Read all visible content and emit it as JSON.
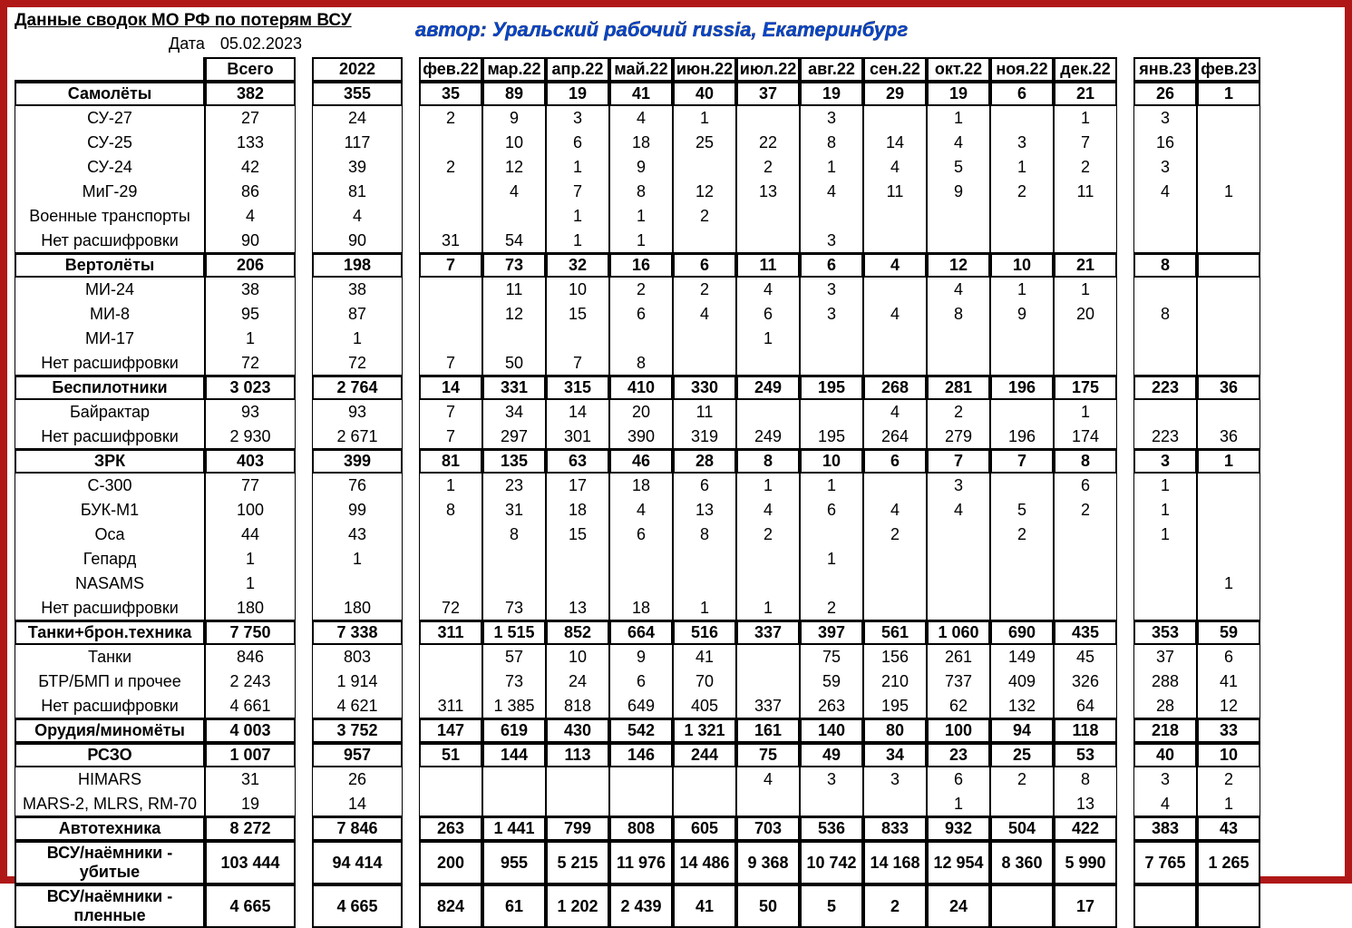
{
  "meta": {
    "title": "Данные сводок МО РФ по потерям ВСУ",
    "date_label": "Дата",
    "date_value": "05.02.2023",
    "author": "автор: Уральский рабочий russia, Екатеринбург",
    "border_color": "#b01818",
    "author_color": "#0047d4"
  },
  "headers": {
    "total": "Всего",
    "year": "2022",
    "months": [
      "фев.22",
      "мар.22",
      "апр.22",
      "май.22",
      "июн.22",
      "июл.22",
      "авг.22",
      "сен.22",
      "окт.22",
      "ноя.22",
      "дек.22"
    ],
    "months23": [
      "янв.23",
      "фев.23"
    ]
  },
  "groups": [
    {
      "label": "Самолёты",
      "total": "382",
      "year": "355",
      "months": [
        "35",
        "89",
        "19",
        "41",
        "40",
        "37",
        "19",
        "29",
        "19",
        "6",
        "21"
      ],
      "m23": [
        "26",
        "1"
      ],
      "children": [
        {
          "label": "СУ-27",
          "total": "27",
          "year": "24",
          "months": [
            "2",
            "9",
            "3",
            "4",
            "1",
            "",
            "3",
            "",
            "1",
            "",
            "1"
          ],
          "m23": [
            "3",
            ""
          ]
        },
        {
          "label": "СУ-25",
          "total": "133",
          "year": "117",
          "months": [
            "",
            "10",
            "6",
            "18",
            "25",
            "22",
            "8",
            "14",
            "4",
            "3",
            "7"
          ],
          "m23": [
            "16",
            ""
          ]
        },
        {
          "label": "СУ-24",
          "total": "42",
          "year": "39",
          "months": [
            "2",
            "12",
            "1",
            "9",
            "",
            "2",
            "1",
            "4",
            "5",
            "1",
            "2"
          ],
          "m23": [
            "3",
            ""
          ]
        },
        {
          "label": "МиГ-29",
          "total": "86",
          "year": "81",
          "months": [
            "",
            "4",
            "7",
            "8",
            "12",
            "13",
            "4",
            "11",
            "9",
            "2",
            "11"
          ],
          "m23": [
            "4",
            "1"
          ]
        },
        {
          "label": "Военные транспорты",
          "total": "4",
          "year": "4",
          "months": [
            "",
            "",
            "1",
            "1",
            "2",
            "",
            "",
            "",
            "",
            "",
            ""
          ],
          "m23": [
            "",
            ""
          ]
        },
        {
          "label": "Нет расшифровки",
          "total": "90",
          "year": "90",
          "months": [
            "31",
            "54",
            "1",
            "1",
            "",
            "",
            "3",
            "",
            "",
            "",
            ""
          ],
          "m23": [
            "",
            ""
          ]
        }
      ]
    },
    {
      "label": "Вертолёты",
      "total": "206",
      "year": "198",
      "months": [
        "7",
        "73",
        "32",
        "16",
        "6",
        "11",
        "6",
        "4",
        "12",
        "10",
        "21"
      ],
      "m23": [
        "8",
        ""
      ],
      "children": [
        {
          "label": "МИ-24",
          "total": "38",
          "year": "38",
          "months": [
            "",
            "11",
            "10",
            "2",
            "2",
            "4",
            "3",
            "",
            "4",
            "1",
            "1"
          ],
          "m23": [
            "",
            ""
          ]
        },
        {
          "label": "МИ-8",
          "total": "95",
          "year": "87",
          "months": [
            "",
            "12",
            "15",
            "6",
            "4",
            "6",
            "3",
            "4",
            "8",
            "9",
            "20"
          ],
          "m23": [
            "8",
            ""
          ]
        },
        {
          "label": "МИ-17",
          "total": "1",
          "year": "1",
          "months": [
            "",
            "",
            "",
            "",
            "",
            "1",
            "",
            "",
            "",
            "",
            ""
          ],
          "m23": [
            "",
            ""
          ]
        },
        {
          "label": "Нет расшифровки",
          "total": "72",
          "year": "72",
          "months": [
            "7",
            "50",
            "7",
            "8",
            "",
            "",
            "",
            "",
            "",
            "",
            ""
          ],
          "m23": [
            "",
            ""
          ]
        }
      ]
    },
    {
      "label": "Беспилотники",
      "total": "3 023",
      "year": "2 764",
      "months": [
        "14",
        "331",
        "315",
        "410",
        "330",
        "249",
        "195",
        "268",
        "281",
        "196",
        "175"
      ],
      "m23": [
        "223",
        "36"
      ],
      "children": [
        {
          "label": "Байрактар",
          "total": "93",
          "year": "93",
          "months": [
            "7",
            "34",
            "14",
            "20",
            "11",
            "",
            "",
            "4",
            "2",
            "",
            "1"
          ],
          "m23": [
            "",
            ""
          ]
        },
        {
          "label": "Нет расшифровки",
          "total": "2 930",
          "year": "2 671",
          "months": [
            "7",
            "297",
            "301",
            "390",
            "319",
            "249",
            "195",
            "264",
            "279",
            "196",
            "174"
          ],
          "m23": [
            "223",
            "36"
          ]
        }
      ]
    },
    {
      "label": "ЗРК",
      "total": "403",
      "year": "399",
      "months": [
        "81",
        "135",
        "63",
        "46",
        "28",
        "8",
        "10",
        "6",
        "7",
        "7",
        "8"
      ],
      "m23": [
        "3",
        "1"
      ],
      "children": [
        {
          "label": "С-300",
          "total": "77",
          "year": "76",
          "months": [
            "1",
            "23",
            "17",
            "18",
            "6",
            "1",
            "1",
            "",
            "3",
            "",
            "6"
          ],
          "m23": [
            "1",
            ""
          ]
        },
        {
          "label": "БУК-М1",
          "total": "100",
          "year": "99",
          "months": [
            "8",
            "31",
            "18",
            "4",
            "13",
            "4",
            "6",
            "4",
            "4",
            "5",
            "2"
          ],
          "m23": [
            "1",
            ""
          ]
        },
        {
          "label": "Оса",
          "total": "44",
          "year": "43",
          "months": [
            "",
            "8",
            "15",
            "6",
            "8",
            "2",
            "",
            "2",
            "",
            "2",
            ""
          ],
          "m23": [
            "1",
            ""
          ]
        },
        {
          "label": "Гепард",
          "total": "1",
          "year": "1",
          "months": [
            "",
            "",
            "",
            "",
            "",
            "",
            "1",
            "",
            "",
            "",
            ""
          ],
          "m23": [
            "",
            ""
          ]
        },
        {
          "label": "NASAMS",
          "total": "1",
          "year": "",
          "months": [
            "",
            "",
            "",
            "",
            "",
            "",
            "",
            "",
            "",
            "",
            ""
          ],
          "m23": [
            "",
            "1"
          ]
        },
        {
          "label": "Нет расшифровки",
          "total": "180",
          "year": "180",
          "months": [
            "72",
            "73",
            "13",
            "18",
            "1",
            "1",
            "2",
            "",
            "",
            "",
            ""
          ],
          "m23": [
            "",
            ""
          ]
        }
      ]
    },
    {
      "label": "Танки+брон.техника",
      "total": "7 750",
      "year": "7 338",
      "months": [
        "311",
        "1 515",
        "852",
        "664",
        "516",
        "337",
        "397",
        "561",
        "1 060",
        "690",
        "435"
      ],
      "m23": [
        "353",
        "59"
      ],
      "children": [
        {
          "label": "Танки",
          "total": "846",
          "year": "803",
          "months": [
            "",
            "57",
            "10",
            "9",
            "41",
            "",
            "75",
            "156",
            "261",
            "149",
            "45"
          ],
          "m23": [
            "37",
            "6"
          ]
        },
        {
          "label": "БТР/БМП и прочее",
          "total": "2 243",
          "year": "1 914",
          "months": [
            "",
            "73",
            "24",
            "6",
            "70",
            "",
            "59",
            "210",
            "737",
            "409",
            "326"
          ],
          "m23": [
            "288",
            "41"
          ]
        },
        {
          "label": "Нет расшифровки",
          "total": "4 661",
          "year": "4 621",
          "months": [
            "311",
            "1 385",
            "818",
            "649",
            "405",
            "337",
            "263",
            "195",
            "62",
            "132",
            "64"
          ],
          "m23": [
            "28",
            "12"
          ]
        }
      ]
    },
    {
      "label": "Орудия/миномёты",
      "total": "4 003",
      "year": "3 752",
      "months": [
        "147",
        "619",
        "430",
        "542",
        "1 321",
        "161",
        "140",
        "80",
        "100",
        "94",
        "118"
      ],
      "m23": [
        "218",
        "33"
      ],
      "children": []
    },
    {
      "label": "РСЗО",
      "total": "1 007",
      "year": "957",
      "months": [
        "51",
        "144",
        "113",
        "146",
        "244",
        "75",
        "49",
        "34",
        "23",
        "25",
        "53"
      ],
      "m23": [
        "40",
        "10"
      ],
      "children": [
        {
          "label": "HIMARS",
          "total": "31",
          "year": "26",
          "months": [
            "",
            "",
            "",
            "",
            "",
            "4",
            "3",
            "3",
            "6",
            "2",
            "8"
          ],
          "m23": [
            "3",
            "2"
          ]
        },
        {
          "label": "MARS-2, MLRS, RM-70",
          "total": "19",
          "year": "14",
          "months": [
            "",
            "",
            "",
            "",
            "",
            "",
            "",
            "",
            "1",
            "",
            "13"
          ],
          "m23": [
            "4",
            "1"
          ]
        }
      ]
    },
    {
      "label": "Автотехника",
      "total": "8 272",
      "year": "7 846",
      "months": [
        "263",
        "1 441",
        "799",
        "808",
        "605",
        "703",
        "536",
        "833",
        "932",
        "504",
        "422"
      ],
      "m23": [
        "383",
        "43"
      ],
      "children": []
    },
    {
      "label": "ВСУ/наёмники - убитые",
      "total": "103 444",
      "year": "94 414",
      "months": [
        "200",
        "955",
        "5 215",
        "11 976",
        "14 486",
        "9 368",
        "10 742",
        "14 168",
        "12 954",
        "8 360",
        "5 990"
      ],
      "m23": [
        "7 765",
        "1 265"
      ],
      "children": []
    },
    {
      "label": "ВСУ/наёмники - пленные",
      "total": "4 665",
      "year": "4 665",
      "months": [
        "824",
        "61",
        "1 202",
        "2 439",
        "41",
        "50",
        "5",
        "2",
        "24",
        "",
        "17"
      ],
      "m23": [
        "",
        ""
      ],
      "children": []
    }
  ]
}
